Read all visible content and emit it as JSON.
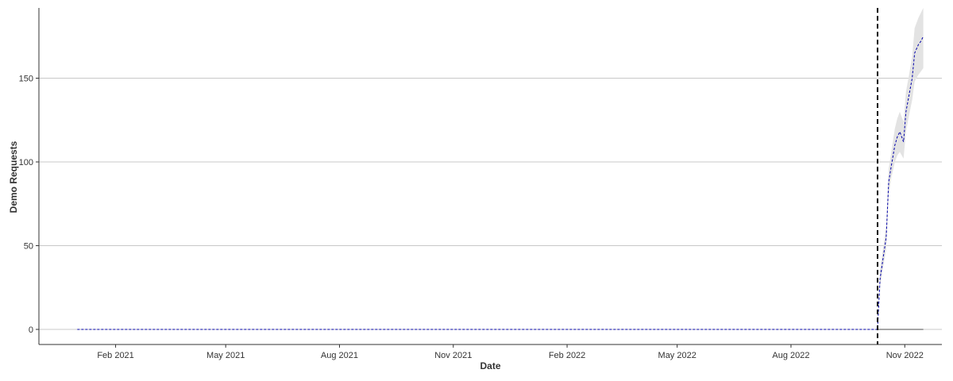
{
  "chart_data": {
    "type": "line",
    "title": "",
    "xlabel": "Date",
    "ylabel": "Demo Requests",
    "x_range": [
      "2020-12-01",
      "2022-12-01"
    ],
    "ylim": [
      -9,
      191
    ],
    "x_ticks": [
      {
        "date": "2021-02-01",
        "label": "Feb 2021"
      },
      {
        "date": "2021-05-01",
        "label": "May 2021"
      },
      {
        "date": "2021-08-01",
        "label": "Aug 2021"
      },
      {
        "date": "2021-11-01",
        "label": "Nov 2021"
      },
      {
        "date": "2022-02-01",
        "label": "Feb 2022"
      },
      {
        "date": "2022-05-01",
        "label": "May 2022"
      },
      {
        "date": "2022-08-01",
        "label": "Aug 2022"
      },
      {
        "date": "2022-11-01",
        "label": "Nov 2022"
      }
    ],
    "y_ticks": [
      0,
      50,
      100,
      150
    ],
    "grid": "horizontal",
    "legend": "none",
    "intervention_date": "2022-10-10",
    "colors": {
      "forecast": "#0000aa",
      "actual": "#888888",
      "band": "#e3e3e3",
      "grid": "#c8c8c8",
      "intervention": "#000000"
    },
    "series": [
      {
        "role": "forecast",
        "style": "dashed",
        "x": [
          "2021-01-01",
          "2022-10-10",
          "2022-10-12",
          "2022-10-14",
          "2022-10-17",
          "2022-10-19",
          "2022-10-21",
          "2022-10-24",
          "2022-10-26",
          "2022-10-28",
          "2022-10-31",
          "2022-11-02",
          "2022-11-04",
          "2022-11-07",
          "2022-11-09",
          "2022-11-12",
          "2022-11-14",
          "2022-11-16"
        ],
        "y": [
          0,
          0,
          30,
          40,
          55,
          88,
          97,
          110,
          115,
          118,
          112,
          130,
          138,
          150,
          165,
          170,
          172,
          175
        ]
      },
      {
        "role": "actual",
        "style": "solid",
        "x": [
          "2022-10-10",
          "2022-11-16"
        ],
        "y": [
          0,
          0
        ]
      },
      {
        "role": "interval",
        "x": [
          "2022-10-10",
          "2022-10-12",
          "2022-10-14",
          "2022-10-17",
          "2022-10-19",
          "2022-10-21",
          "2022-10-24",
          "2022-10-26",
          "2022-10-28",
          "2022-10-31",
          "2022-11-02",
          "2022-11-04",
          "2022-11-07",
          "2022-11-09",
          "2022-11-12",
          "2022-11-14",
          "2022-11-16"
        ],
        "lower": [
          0,
          25,
          35,
          48,
          80,
          90,
          100,
          104,
          106,
          102,
          118,
          126,
          137,
          148,
          152,
          154,
          156
        ],
        "upper": [
          0,
          35,
          46,
          62,
          96,
          105,
          120,
          126,
          130,
          124,
          142,
          150,
          163,
          180,
          186,
          189,
          192
        ]
      }
    ]
  }
}
